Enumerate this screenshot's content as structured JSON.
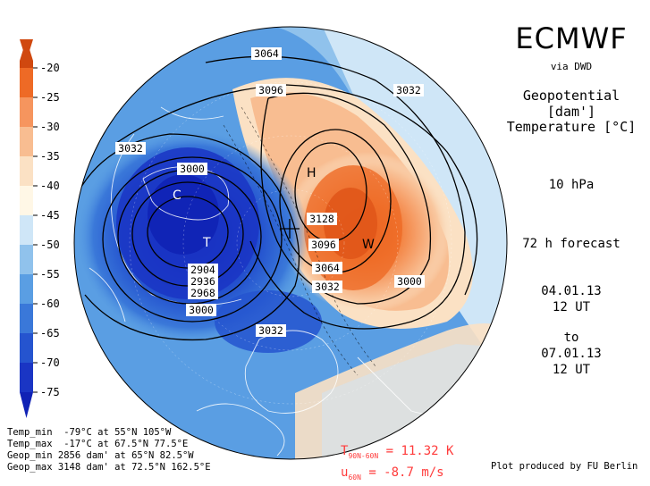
{
  "header": {
    "brand": "ECMWF",
    "source": "via DWD",
    "field1": "Geopotential",
    "field1_unit": "[dam']",
    "field2": "Temperature",
    "field2_unit": "[°C]",
    "level": "10 hPa",
    "forecast": "72 h forecast",
    "init_date": "04.01.13",
    "init_time": "12 UT",
    "to_label": "to",
    "valid_date": "07.01.13",
    "valid_time": "12 UT"
  },
  "colorbar": {
    "labels": [
      "-20",
      "-25",
      "-30",
      "-35",
      "-40",
      "-45",
      "-50",
      "-55",
      "-60",
      "-65",
      "-70",
      "-75"
    ],
    "colors": [
      "#d0480f",
      "#ee6a26",
      "#f6955e",
      "#f8bd91",
      "#fbe1c4",
      "#fff7e6",
      "#cfe6f7",
      "#90c2ec",
      "#5a9ee3",
      "#3a78d9",
      "#2554cf",
      "#1a35c4",
      "#1022b5"
    ]
  },
  "map": {
    "contour_labels": [
      "3064",
      "3096",
      "3032",
      "3032",
      "3000",
      "3128",
      "3096",
      "3064",
      "3032",
      "3000",
      "2904",
      "2936",
      "2968",
      "3000",
      "3032"
    ],
    "high_marker": "H",
    "warm_marker": "W",
    "cold_marker": "C",
    "low_marker": "T"
  },
  "stats": {
    "line1": "Temp_min  -79°C at 55°N 105°W",
    "line2": "Temp_max  -17°C at 67.5°N 77.5°E",
    "line3": "Geop_min 2856 dam' at 65°N 82.5°W",
    "line4": "Geop_max 3148 dam' at 72.5°N 162.5°E"
  },
  "indices": {
    "t_symbol": "T",
    "t_sub": "90N-60N",
    "t_value": " = 11.32 K",
    "u_symbol": "u",
    "u_sub": "60N",
    "u_value": " = -8.7 m/s"
  },
  "credit": "Plot produced by FU Berlin"
}
